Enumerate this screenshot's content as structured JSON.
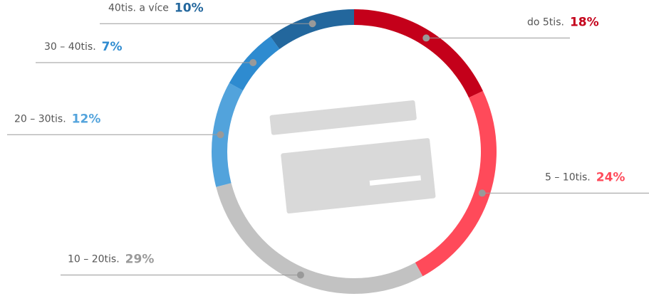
{
  "chart_data": {
    "type": "donut",
    "categories": [
      "do 5tis.",
      "5 – 10tis.",
      "10 – 20tis.",
      "20 – 30tis.",
      "30 – 40tis.",
      "40tis. a více"
    ],
    "values": [
      18,
      24,
      29,
      12,
      7,
      10
    ],
    "value_labels": [
      "18%",
      "24%",
      "29%",
      "12%",
      "7%",
      "10%"
    ],
    "colors": [
      "#c4001a",
      "#ff4a5a",
      "#c2c2c2",
      "#52a3dc",
      "#2e8bd0",
      "#23679d"
    ],
    "label_colors": [
      "#c4001a",
      "#ff4a5a",
      "#9a9a9a",
      "#52a3dc",
      "#2e8bd0",
      "#23679d"
    ]
  }
}
